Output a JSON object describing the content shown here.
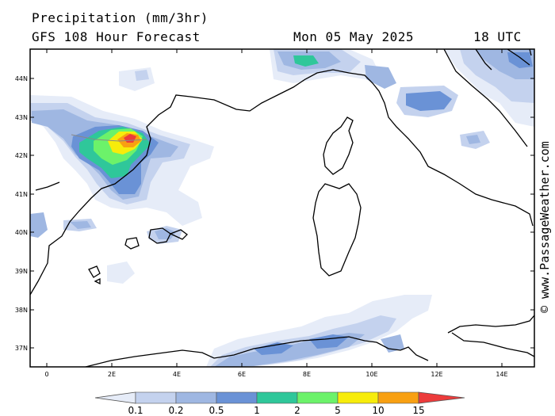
{
  "header": {
    "title": "Precipitation (mm/3hr)",
    "subtitle": "GFS 108 Hour Forecast",
    "date": "Mon 05 May 2025",
    "time": "18 UTC"
  },
  "lat_labels": [
    "44N",
    "43N",
    "42N",
    "41N",
    "40N",
    "39N",
    "38N",
    "37N"
  ],
  "lon_labels": [
    "0",
    "2E",
    "4E",
    "6E",
    "8E",
    "10E",
    "12E",
    "14E"
  ],
  "colorbar": {
    "labels": [
      "0.1",
      "0.2",
      "0.5",
      "1",
      "2",
      "5",
      "10",
      "15"
    ],
    "colors": [
      "#e6ecf8",
      "#c4d2ee",
      "#9fb7e2",
      "#6a92d6",
      "#2fc79a",
      "#6cf26a",
      "#f7ec0b",
      "#f8a012",
      "#ec3b3b"
    ]
  },
  "credit": "© www.PassageWeather.com"
}
